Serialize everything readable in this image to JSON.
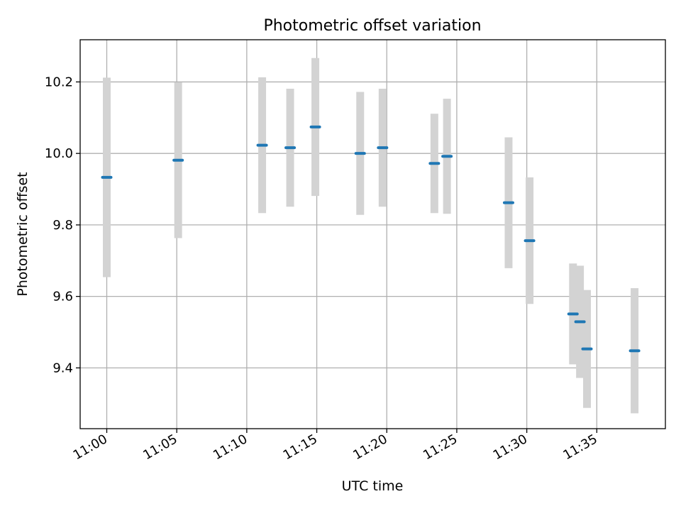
{
  "chart_data": {
    "type": "scatter",
    "title": "Photometric offset variation",
    "xlabel": "UTC time",
    "ylabel": "Photometric offset",
    "x_ticks": [
      "11:00",
      "11:05",
      "11:10",
      "11:15",
      "11:20",
      "11:25",
      "11:30",
      "11:35"
    ],
    "y_ticks": [
      "9.4",
      "9.6",
      "9.8",
      "10.0",
      "10.2"
    ],
    "xlim": [
      "10:58:06",
      "11:39:54"
    ],
    "ylim": [
      9.23,
      10.318
    ],
    "grid": true,
    "marker_color": "#1f77b4",
    "errorbar_color": "#d3d3d3",
    "points": [
      {
        "x": "11:00:00",
        "y": 9.933,
        "yerr": 0.279
      },
      {
        "x": "11:05:06",
        "y": 9.981,
        "yerr": 0.218
      },
      {
        "x": "11:11:06",
        "y": 10.023,
        "yerr": 0.19
      },
      {
        "x": "11:13:06",
        "y": 10.016,
        "yerr": 0.165
      },
      {
        "x": "11:14:54",
        "y": 10.074,
        "yerr": 0.193
      },
      {
        "x": "11:18:06",
        "y": 10.0,
        "yerr": 0.172
      },
      {
        "x": "11:19:42",
        "y": 10.016,
        "yerr": 0.165
      },
      {
        "x": "11:23:24",
        "y": 9.972,
        "yerr": 0.139
      },
      {
        "x": "11:24:18",
        "y": 9.992,
        "yerr": 0.161
      },
      {
        "x": "11:28:42",
        "y": 9.862,
        "yerr": 0.183
      },
      {
        "x": "11:30:12",
        "y": 9.756,
        "yerr": 0.177
      },
      {
        "x": "11:33:18",
        "y": 9.551,
        "yerr": 0.141
      },
      {
        "x": "11:33:48",
        "y": 9.529,
        "yerr": 0.157
      },
      {
        "x": "11:34:18",
        "y": 9.453,
        "yerr": 0.165
      },
      {
        "x": "11:37:42",
        "y": 9.448,
        "yerr": 0.175
      }
    ]
  }
}
